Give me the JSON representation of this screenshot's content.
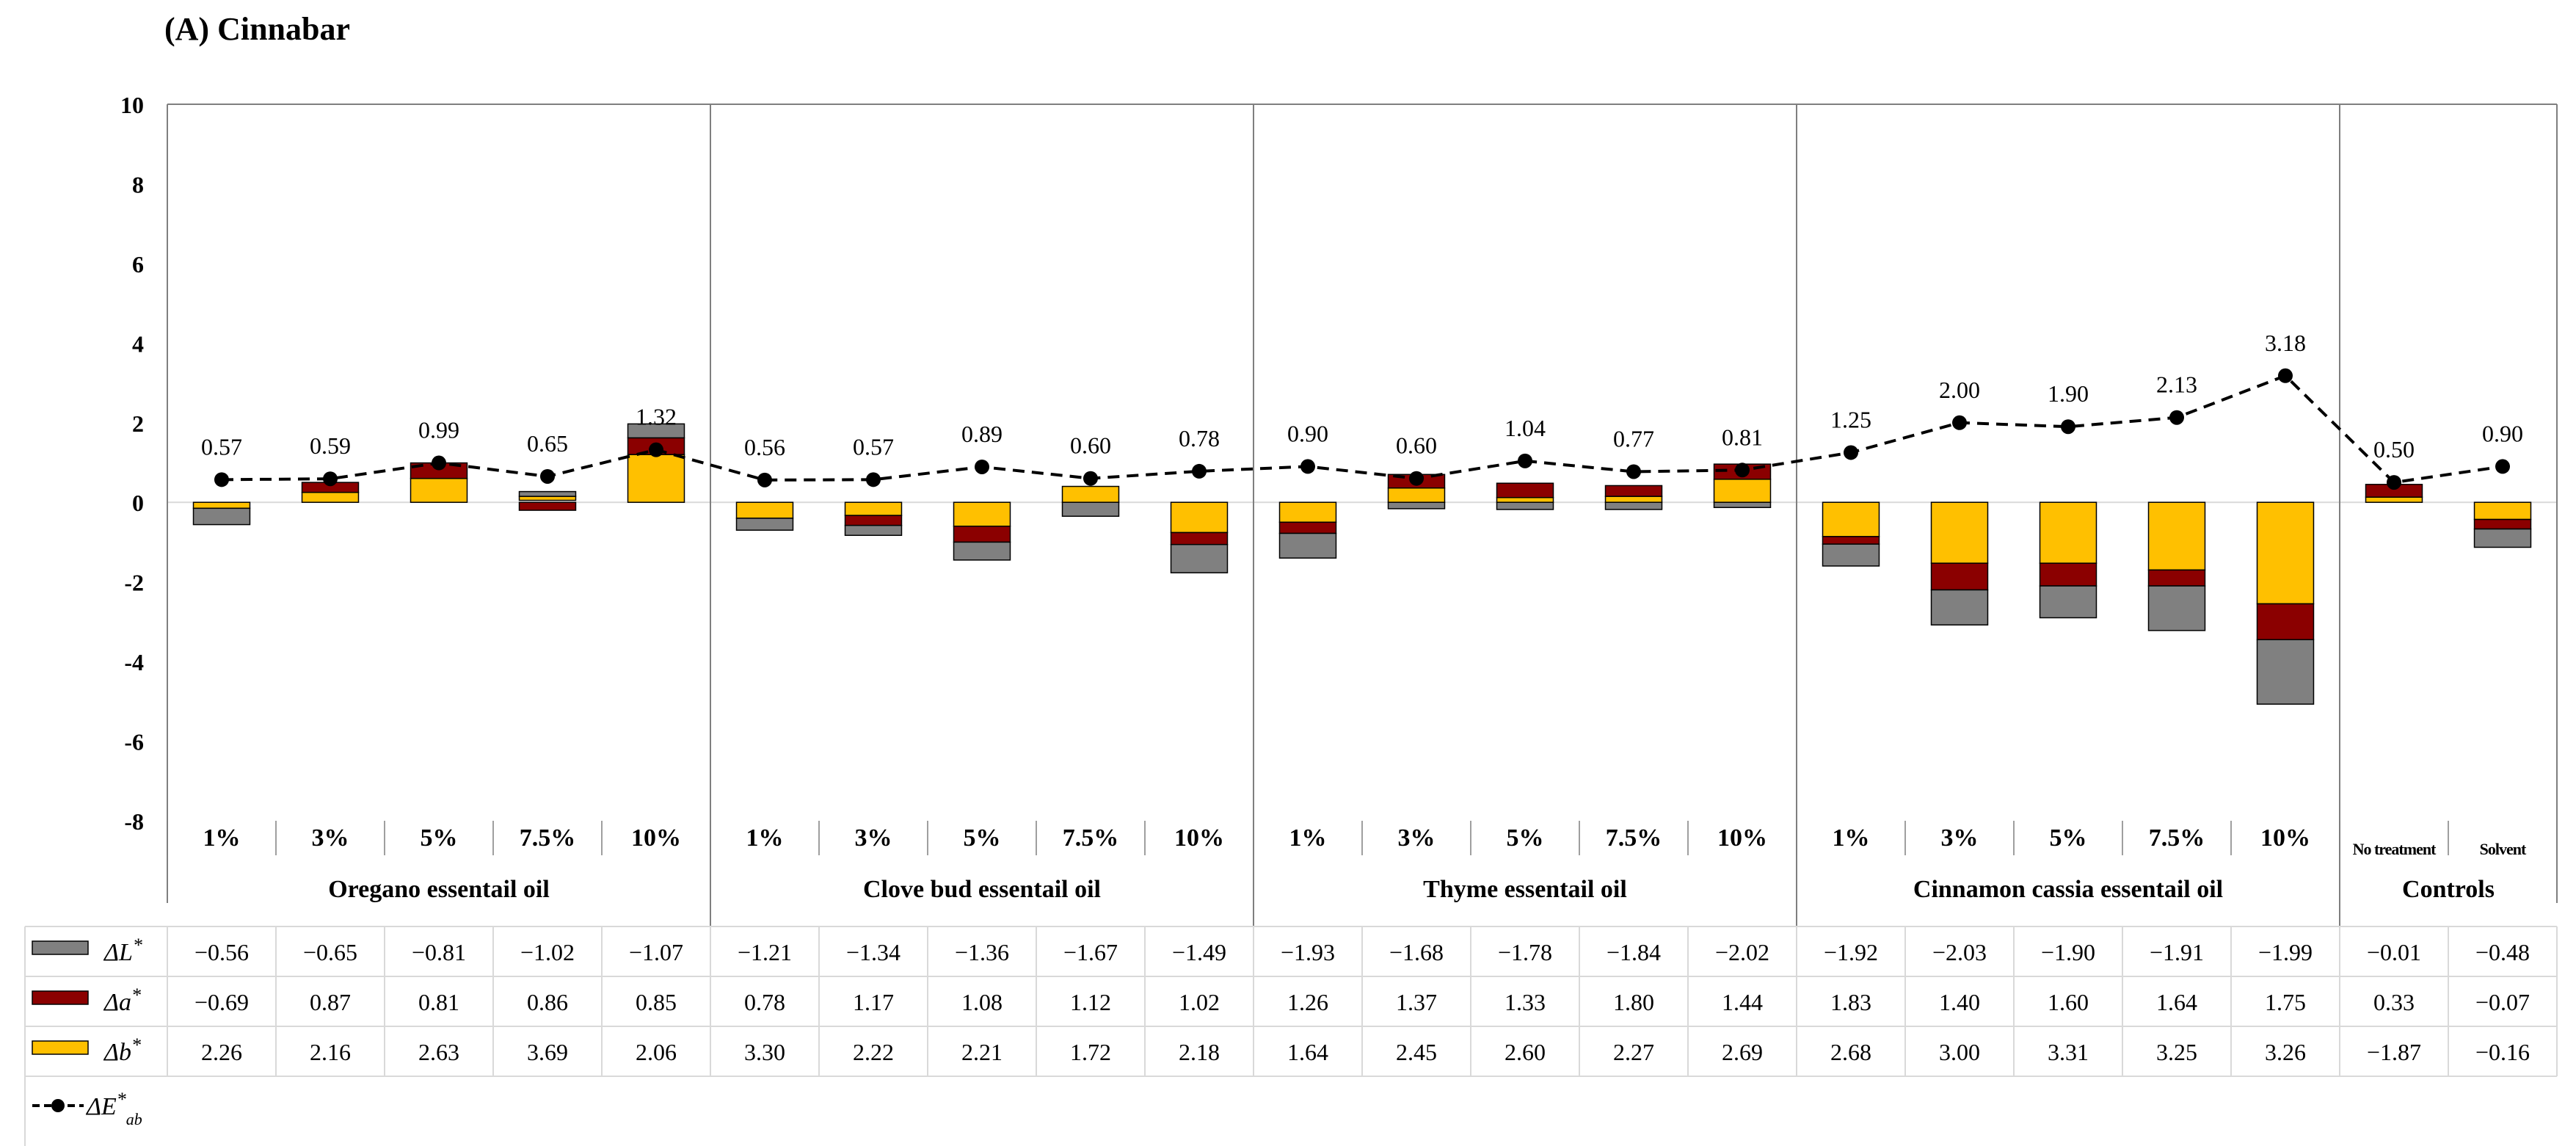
{
  "colors": {
    "delta_L": "#808080",
    "delta_a": "#8b0000",
    "delta_b": "#ffc000",
    "delta_E": "#000000",
    "axis": "#7f7f7f",
    "grid": "#d9d9d9"
  },
  "chart_data": {
    "type": "bar",
    "subtype": "stacked-bar-with-line",
    "title": "(A) Cinnabar",
    "ylim": [
      -8,
      10
    ],
    "yticks": [
      "10",
      "8",
      "6",
      "4",
      "2",
      "0",
      "-2",
      "-4",
      "-6",
      "-8"
    ],
    "ytick_values": [
      10,
      8,
      6,
      4,
      2,
      0,
      -2,
      -4,
      -6,
      -8
    ],
    "groups": [
      {
        "name": "Oregano essentail oil",
        "categories": [
          "1%",
          "3%",
          "5%",
          "7.5%",
          "10%"
        ]
      },
      {
        "name": "Clove bud essentail oil",
        "categories": [
          "1%",
          "3%",
          "5%",
          "7.5%",
          "10%"
        ]
      },
      {
        "name": "Thyme essentail oil",
        "categories": [
          "1%",
          "3%",
          "5%",
          "7.5%",
          "10%"
        ]
      },
      {
        "name": "Cinnamon cassia essentail oil",
        "categories": [
          "1%",
          "3%",
          "5%",
          "7.5%",
          "10%"
        ]
      },
      {
        "name": "Controls",
        "categories": [
          "No treatment",
          "Solvent"
        ]
      }
    ],
    "series": [
      {
        "name": "ΔL*",
        "label_main": "ΔL",
        "label_sup": "*",
        "kind": "bar",
        "values": [
          -0.56,
          -0.65,
          -0.81,
          -1.02,
          -1.07,
          -1.21,
          -1.34,
          -1.36,
          -1.67,
          -1.49,
          -1.93,
          -1.68,
          -1.78,
          -1.84,
          -2.02,
          -1.92,
          -2.03,
          -1.9,
          -1.91,
          -1.99,
          -0.01,
          -0.48
        ],
        "display": [
          "−0.56",
          "−0.65",
          "−0.81",
          "−1.02",
          "−1.07",
          "−1.21",
          "−1.34",
          "−1.36",
          "−1.67",
          "−1.49",
          "−1.93",
          "−1.68",
          "−1.78",
          "−1.84",
          "−2.02",
          "−1.92",
          "−2.03",
          "−1.90",
          "−1.91",
          "−1.99",
          "−0.01",
          "−0.48"
        ]
      },
      {
        "name": "Δa*",
        "label_main": "Δa",
        "label_sup": "*",
        "kind": "bar",
        "values": [
          -0.69,
          0.87,
          0.81,
          0.86,
          0.85,
          0.78,
          1.17,
          1.08,
          1.12,
          1.02,
          1.26,
          1.37,
          1.33,
          1.8,
          1.44,
          1.83,
          1.4,
          1.6,
          1.64,
          1.75,
          0.33,
          -0.07
        ],
        "display": [
          "−0.69",
          "0.87",
          "0.81",
          "0.86",
          "0.85",
          "0.78",
          "1.17",
          "1.08",
          "1.12",
          "1.02",
          "1.26",
          "1.37",
          "1.33",
          "1.80",
          "1.44",
          "1.83",
          "1.40",
          "1.60",
          "1.64",
          "1.75",
          "0.33",
          "−0.07"
        ]
      },
      {
        "name": "Δb*",
        "label_main": "Δb",
        "label_sup": "*",
        "kind": "bar",
        "values": [
          2.26,
          2.16,
          2.63,
          3.69,
          2.06,
          3.3,
          2.22,
          2.21,
          1.72,
          2.18,
          1.64,
          2.45,
          2.6,
          2.27,
          2.69,
          2.68,
          3.0,
          3.31,
          3.25,
          3.26,
          -1.87,
          -0.16
        ],
        "display": [
          "2.26",
          "2.16",
          "2.63",
          "3.69",
          "2.06",
          "3.30",
          "2.22",
          "2.21",
          "1.72",
          "2.18",
          "1.64",
          "2.45",
          "2.60",
          "2.27",
          "2.69",
          "2.68",
          "3.00",
          "3.31",
          "3.25",
          "3.26",
          "−1.87",
          "−0.16"
        ]
      }
    ],
    "bar_segments": [
      {
        "b": [
          0,
          -0.15
        ],
        "a": [
          0,
          0
        ],
        "L": [
          -0.15,
          -0.56
        ]
      },
      {
        "b": [
          0,
          0.25
        ],
        "a": [
          0.25,
          0.5
        ],
        "L": [
          0,
          0
        ]
      },
      {
        "b": [
          0,
          0.6
        ],
        "a": [
          0.6,
          0.99
        ],
        "L": [
          0,
          0
        ]
      },
      {
        "b": [
          0.05,
          0.15
        ],
        "a": [
          0,
          -0.2
        ],
        "L": [
          0.15,
          0.27
        ]
      },
      {
        "b": [
          0,
          1.2
        ],
        "a": [
          1.2,
          1.62
        ],
        "L": [
          1.62,
          1.97
        ]
      },
      {
        "b": [
          0,
          -0.4
        ],
        "a": [
          0,
          0
        ],
        "L": [
          -0.4,
          -0.7
        ]
      },
      {
        "b": [
          0,
          -0.33
        ],
        "a": [
          -0.33,
          -0.58
        ],
        "L": [
          -0.58,
          -0.83
        ]
      },
      {
        "b": [
          0,
          -0.6
        ],
        "a": [
          -0.6,
          -1.0
        ],
        "L": [
          -1.0,
          -1.45
        ]
      },
      {
        "b": [
          0,
          0.4
        ],
        "a": [
          0,
          0
        ],
        "L": [
          0,
          -0.35
        ]
      },
      {
        "b": [
          0,
          -0.76
        ],
        "a": [
          -0.76,
          -1.06
        ],
        "L": [
          -1.06,
          -1.77
        ]
      },
      {
        "b": [
          0,
          -0.5
        ],
        "a": [
          -0.5,
          -0.78
        ],
        "L": [
          -0.78,
          -1.4
        ]
      },
      {
        "b": [
          0,
          0.36
        ],
        "a": [
          0.36,
          0.7
        ],
        "L": [
          0,
          -0.16
        ]
      },
      {
        "b": [
          0,
          0.12
        ],
        "a": [
          0.12,
          0.48
        ],
        "L": [
          0,
          -0.18
        ]
      },
      {
        "b": [
          0,
          0.15
        ],
        "a": [
          0.15,
          0.42
        ],
        "L": [
          0,
          -0.18
        ]
      },
      {
        "b": [
          0,
          0.58
        ],
        "a": [
          0.58,
          0.96
        ],
        "L": [
          0,
          -0.13
        ]
      },
      {
        "b": [
          0,
          -0.86
        ],
        "a": [
          -0.86,
          -1.05
        ],
        "L": [
          -1.05,
          -1.6
        ]
      },
      {
        "b": [
          0,
          -1.53
        ],
        "a": [
          -1.53,
          -2.2
        ],
        "L": [
          -2.2,
          -3.08
        ]
      },
      {
        "b": [
          0,
          -1.53
        ],
        "a": [
          -1.53,
          -2.1
        ],
        "L": [
          -2.1,
          -2.9
        ]
      },
      {
        "b": [
          0,
          -1.7
        ],
        "a": [
          -1.7,
          -2.1
        ],
        "L": [
          -2.1,
          -3.22
        ]
      },
      {
        "b": [
          0,
          -2.55
        ],
        "a": [
          -2.55,
          -3.45
        ],
        "L": [
          -3.45,
          -5.07
        ]
      },
      {
        "b": [
          0,
          0.13
        ],
        "a": [
          0.13,
          0.45
        ],
        "L": [
          0,
          0
        ]
      },
      {
        "b": [
          0,
          -0.43
        ],
        "a": [
          -0.43,
          -0.67
        ],
        "L": [
          -0.67,
          -1.13
        ]
      }
    ],
    "delta_E": {
      "name": "ΔE*ab",
      "label_main": "ΔE",
      "label_sup": "*",
      "label_sub": "ab",
      "kind": "line",
      "values": [
        0.57,
        0.59,
        0.99,
        0.65,
        1.32,
        0.56,
        0.57,
        0.89,
        0.6,
        0.78,
        0.9,
        0.6,
        1.04,
        0.77,
        0.81,
        1.25,
        2.0,
        1.9,
        2.13,
        3.18,
        0.5,
        0.9
      ],
      "labels": [
        "0.57",
        "0.59",
        "0.99",
        "0.65",
        "1.32",
        "0.56",
        "0.57",
        "0.89",
        "0.60",
        "0.78",
        "0.90",
        "0.60",
        "1.04",
        "0.77",
        "0.81",
        "1.25",
        "2.00",
        "1.90",
        "2.13",
        "3.18",
        "0.50",
        "0.90"
      ]
    }
  }
}
